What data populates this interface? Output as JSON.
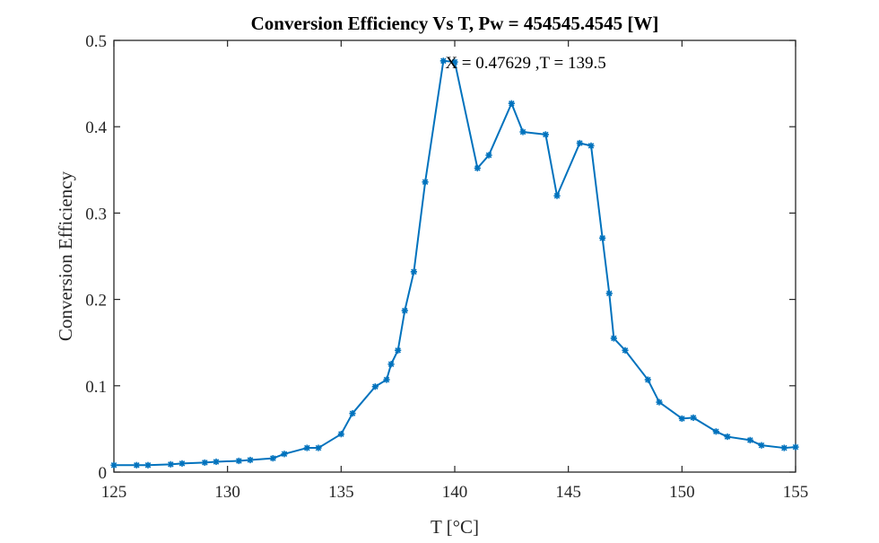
{
  "chart_data": {
    "type": "line",
    "title": "Conversion Efficiency Vs T, Pw = 454545.4545 [W]",
    "xlabel": "T [°C]",
    "ylabel": "Conversion Efficiency",
    "xlim": [
      125,
      155
    ],
    "ylim": [
      0,
      0.5
    ],
    "xticks": [
      125,
      130,
      135,
      140,
      145,
      150,
      155
    ],
    "yticks": [
      0,
      0.1,
      0.2,
      0.3,
      0.4,
      0.5
    ],
    "ytick_labels": [
      "0",
      "0.1",
      "0.2",
      "0.3",
      "0.4",
      "0.5"
    ],
    "grid": false,
    "annotation": {
      "text": "X = 0.47629 ,T = 139.5",
      "x": 139.5,
      "y": 0.47629
    },
    "series": [
      {
        "color": "#0072BD",
        "marker": "asterisk",
        "x": [
          125,
          126,
          126.5,
          127.5,
          128,
          129,
          129.5,
          130.5,
          131,
          132,
          132.5,
          133.5,
          134,
          135,
          135.5,
          136.5,
          137,
          137.2,
          137.5,
          137.8,
          138.2,
          138.7,
          139.5,
          140,
          141,
          141.5,
          142.5,
          143,
          144,
          144.5,
          145.5,
          146,
          146.5,
          146.8,
          147,
          147.5,
          148.5,
          149,
          150,
          150.5,
          151.5,
          152,
          153,
          153.5,
          154.5,
          155
        ],
        "y": [
          0.008,
          0.008,
          0.008,
          0.009,
          0.01,
          0.011,
          0.012,
          0.013,
          0.014,
          0.016,
          0.021,
          0.028,
          0.028,
          0.044,
          0.068,
          0.099,
          0.107,
          0.125,
          0.141,
          0.187,
          0.232,
          0.336,
          0.47629,
          0.475,
          0.352,
          0.367,
          0.427,
          0.394,
          0.391,
          0.32,
          0.381,
          0.378,
          0.271,
          0.207,
          0.155,
          0.141,
          0.107,
          0.081,
          0.062,
          0.063,
          0.047,
          0.041,
          0.037,
          0.031,
          0.028,
          0.029
        ]
      }
    ]
  }
}
